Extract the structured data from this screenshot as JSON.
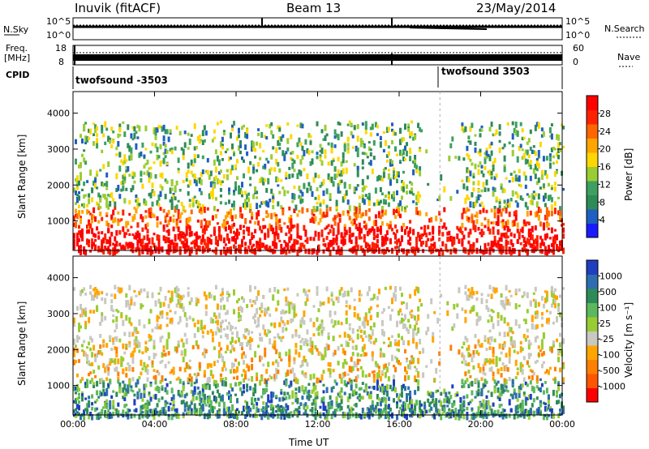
{
  "header": {
    "station": "Inuvik (fitACF)",
    "beam": "Beam 13",
    "date": "23/May/2014"
  },
  "summary_panels": {
    "nsky_label": "N.Sky",
    "nsearch_label": "N.Search",
    "nsky_ticks": [
      "10^5",
      "10^0"
    ],
    "nsearch_ticks": [
      "10^5",
      "10^0"
    ],
    "freq_label_line1": "Freq.",
    "freq_label_line2": "[MHz]",
    "freq_ticks": [
      "18",
      "8"
    ],
    "nave_label": "Nave",
    "nave_ticks": [
      "60",
      "0"
    ],
    "cpid_label": "CPID",
    "cpid_segments": [
      {
        "name": "twofsound -3503",
        "start_hour": 0
      },
      {
        "name": "twofsound 3503",
        "start_hour": 18
      }
    ]
  },
  "chart_data": [
    {
      "type": "heatmap",
      "title": "",
      "xlabel": "Time UT",
      "ylabel": "Slant Range [km]",
      "x_ticks": [
        "00:00",
        "04:00",
        "08:00",
        "12:00",
        "16:00",
        "20:00",
        "00:00"
      ],
      "y_ticks": [
        1000,
        2000,
        3000,
        4000
      ],
      "xlim_hours": [
        0,
        24
      ],
      "ylim": [
        180,
        4600
      ],
      "colorbar": {
        "label": "Power [dB]",
        "ticks": [
          "28",
          "24",
          "20",
          "16",
          "12",
          "8",
          "4"
        ],
        "colors": [
          "#1a1aff",
          "#1f5fbf",
          "#2e8b57",
          "#3da060",
          "#9acd32",
          "#ffd700",
          "#ffa500",
          "#ff6600",
          "#ff2200",
          "#ff0000"
        ]
      }
    },
    {
      "type": "heatmap",
      "title": "",
      "xlabel": "Time UT",
      "ylabel": "Slant Range [km]",
      "x_ticks": [
        "00:00",
        "04:00",
        "08:00",
        "12:00",
        "16:00",
        "20:00",
        "00:00"
      ],
      "y_ticks": [
        1000,
        2000,
        3000,
        4000
      ],
      "xlim_hours": [
        0,
        24
      ],
      "ylim": [
        180,
        4600
      ],
      "colorbar": {
        "label": "Velocity [m s⁻¹]",
        "ticks": [
          "1000",
          "500",
          "100",
          "25",
          "-25",
          "-100",
          "-500",
          "-1000"
        ],
        "colors": [
          "#1f3fbf",
          "#2e6eb0",
          "#2e8b57",
          "#5cb85c",
          "#99cc33",
          "#c8c8c0",
          "#ffa500",
          "#ff8000",
          "#ff5500",
          "#ff0000"
        ]
      }
    }
  ]
}
